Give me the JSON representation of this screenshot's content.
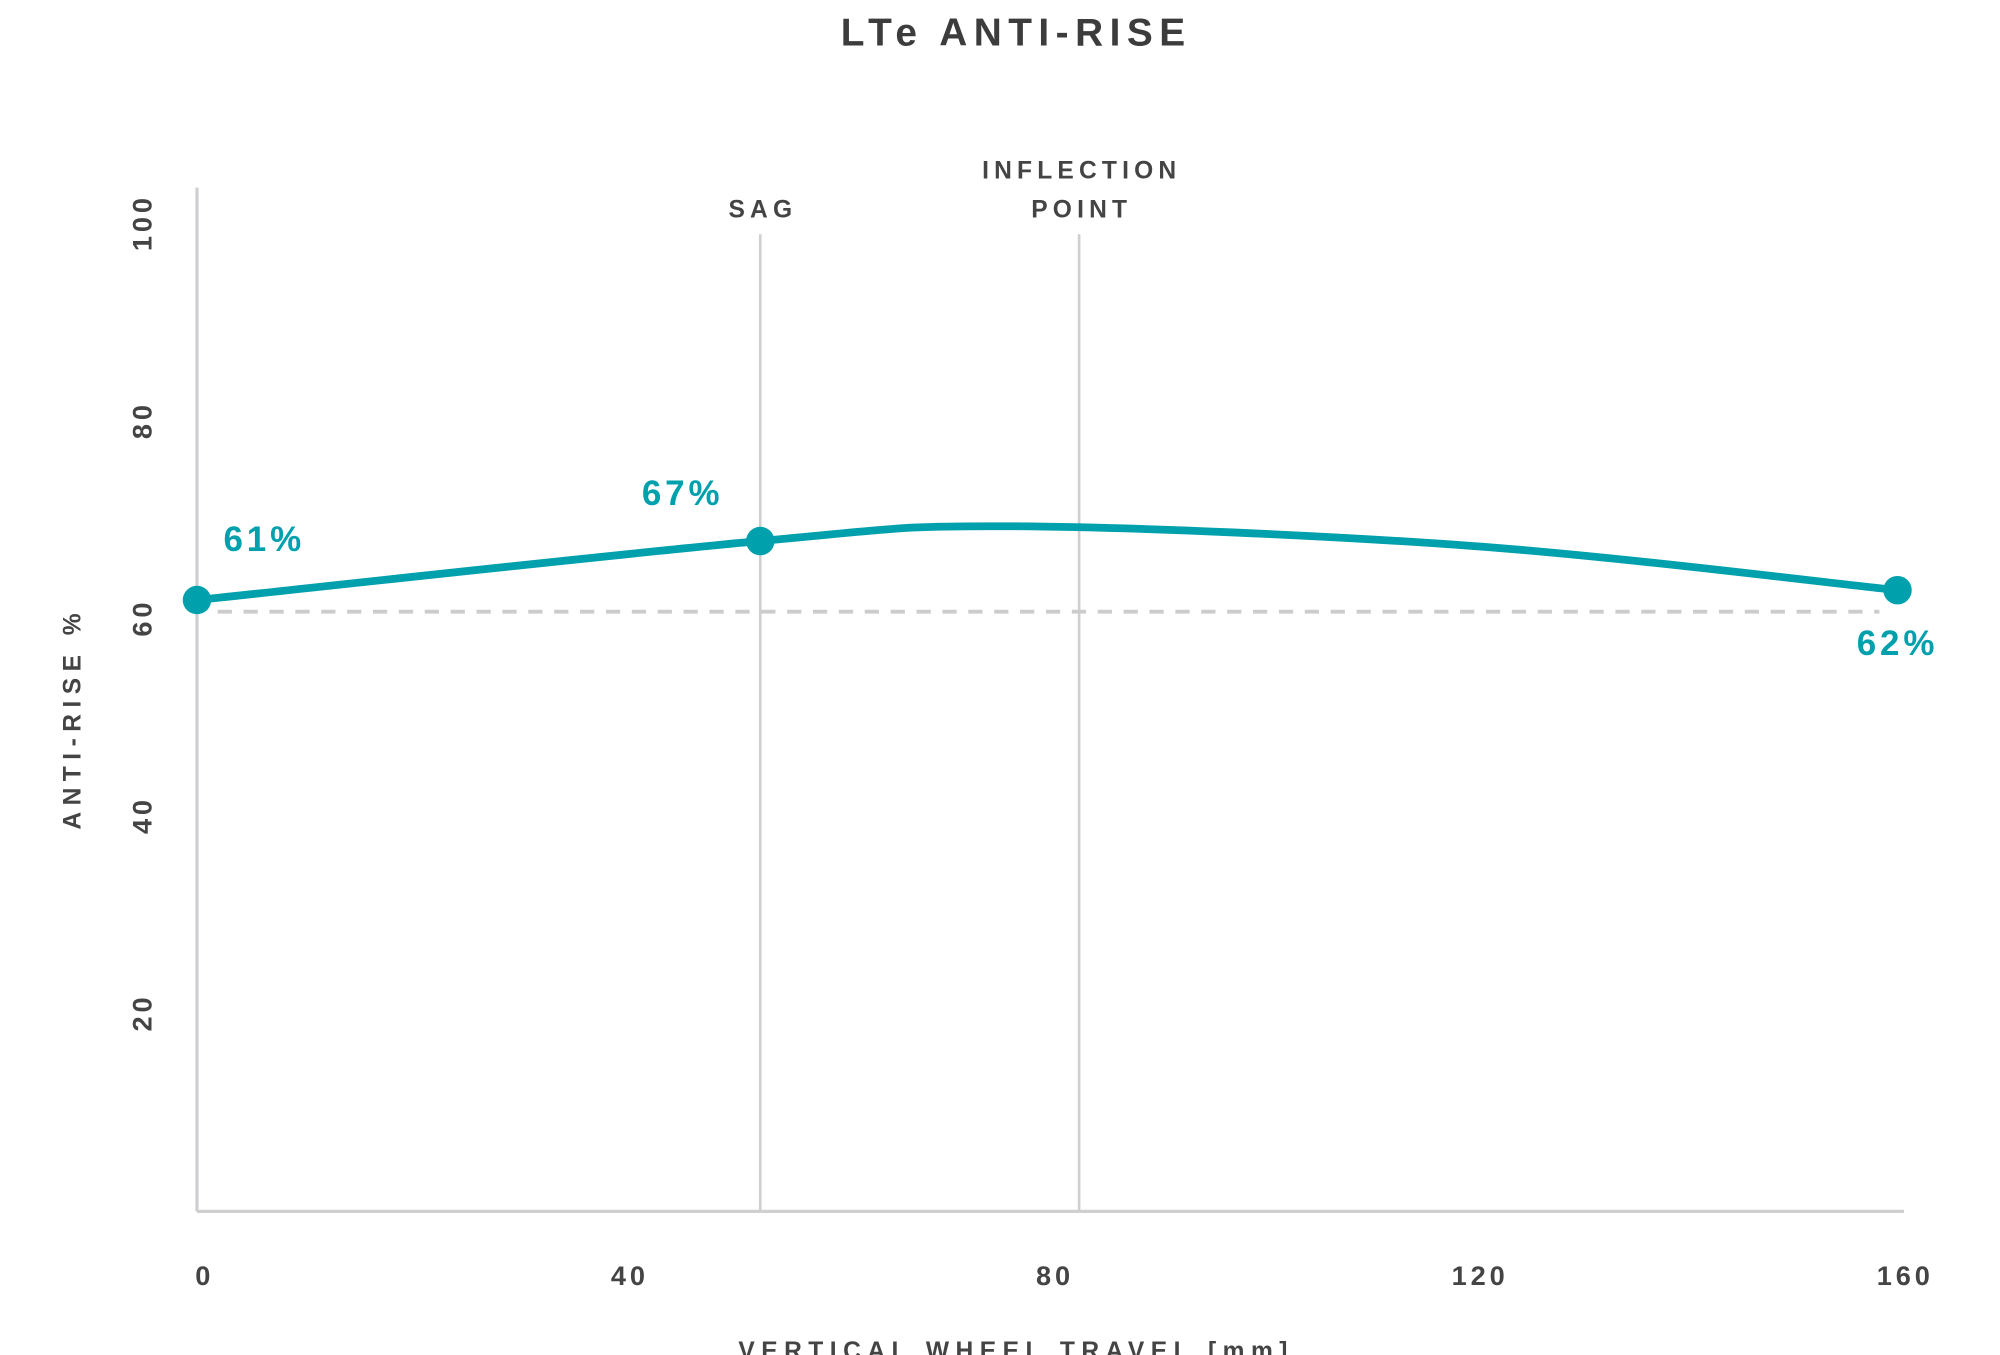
{
  "chart_data": {
    "type": "line",
    "title": "LTe ANTI-RISE",
    "xlabel": "VERTICAL WHEEL TRAVEL [mm]",
    "ylabel": "ANTI-RISE %",
    "xlim": [
      0,
      160
    ],
    "ylim": [
      0,
      104
    ],
    "xticks": [
      "0",
      "40",
      "80",
      "120",
      "160"
    ],
    "xtick_values": [
      0,
      40,
      80,
      120,
      160
    ],
    "yticks": [
      "20",
      "40",
      "60",
      "80",
      "100"
    ],
    "ytick_values": [
      20,
      40,
      60,
      80,
      100
    ],
    "grid": false,
    "series": [
      {
        "name": "Anti-rise",
        "color": "#00a0ad",
        "x": [
          0,
          53,
          77,
          120,
          160
        ],
        "y": [
          61,
          67,
          68.5,
          66.5,
          62
        ]
      }
    ],
    "highlighted_points": [
      {
        "x": 0,
        "y": 61,
        "label": "61%"
      },
      {
        "x": 53,
        "y": 67,
        "label": "67%"
      },
      {
        "x": 160,
        "y": 62,
        "label": "62%"
      }
    ],
    "reference_lines": [
      {
        "x": 53,
        "label_lines": [
          "SAG"
        ]
      },
      {
        "x": 83,
        "label_lines": [
          "INFLECTION",
          "POINT"
        ]
      }
    ],
    "baseline": {
      "y": 61,
      "style": "dashed",
      "color": "#cccccc"
    }
  }
}
